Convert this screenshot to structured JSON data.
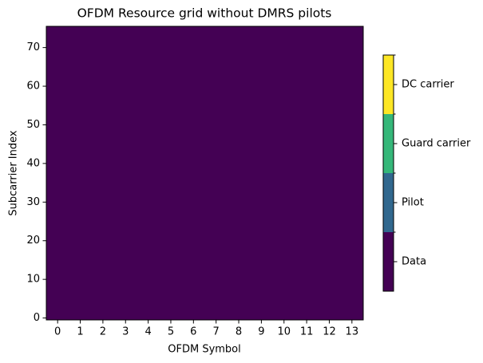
{
  "chart_data": {
    "type": "heatmap",
    "title": "OFDM Resource grid without DMRS pilots",
    "x_label": "OFDM Symbol",
    "y_label": "Subcarrier Index",
    "xlim": [
      -0.5,
      13.5
    ],
    "xticks": [
      0,
      1,
      2,
      3,
      4,
      5,
      6,
      7,
      8,
      9,
      10,
      11,
      12,
      13
    ],
    "ylim": [
      -0.5,
      75.5
    ],
    "yticks": [
      0,
      10,
      20,
      30,
      40,
      50,
      60,
      70
    ],
    "z": [
      [
        0,
        0,
        0,
        0,
        0,
        0,
        0,
        0,
        0,
        0,
        0,
        0,
        0,
        0
      ],
      [
        0,
        0,
        0,
        0,
        0,
        0,
        0,
        0,
        0,
        0,
        0,
        0,
        0,
        0
      ],
      [
        0,
        0,
        0,
        0,
        0,
        0,
        0,
        0,
        0,
        0,
        0,
        0,
        0,
        0
      ],
      [
        0,
        0,
        0,
        0,
        0,
        0,
        0,
        0,
        0,
        0,
        0,
        0,
        0,
        0
      ],
      [
        0,
        0,
        0,
        0,
        0,
        0,
        0,
        0,
        0,
        0,
        0,
        0,
        0,
        0
      ],
      [
        0,
        0,
        0,
        0,
        0,
        0,
        0,
        0,
        0,
        0,
        0,
        0,
        0,
        0
      ],
      [
        0,
        0,
        0,
        0,
        0,
        0,
        0,
        0,
        0,
        0,
        0,
        0,
        0,
        0
      ],
      [
        0,
        0,
        0,
        0,
        0,
        0,
        0,
        0,
        0,
        0,
        0,
        0,
        0,
        0
      ],
      [
        0,
        0,
        0,
        0,
        0,
        0,
        0,
        0,
        0,
        0,
        0,
        0,
        0,
        0
      ],
      [
        0,
        0,
        0,
        0,
        0,
        0,
        0,
        0,
        0,
        0,
        0,
        0,
        0,
        0
      ],
      [
        0,
        0,
        0,
        0,
        0,
        0,
        0,
        0,
        0,
        0,
        0,
        0,
        0,
        0
      ],
      [
        0,
        0,
        0,
        0,
        0,
        0,
        0,
        0,
        0,
        0,
        0,
        0,
        0,
        0
      ],
      [
        0,
        0,
        0,
        0,
        0,
        0,
        0,
        0,
        0,
        0,
        0,
        0,
        0,
        0
      ],
      [
        0,
        0,
        0,
        0,
        0,
        0,
        0,
        0,
        0,
        0,
        0,
        0,
        0,
        0
      ],
      [
        0,
        0,
        0,
        0,
        0,
        0,
        0,
        0,
        0,
        0,
        0,
        0,
        0,
        0
      ],
      [
        0,
        0,
        0,
        0,
        0,
        0,
        0,
        0,
        0,
        0,
        0,
        0,
        0,
        0
      ],
      [
        0,
        0,
        0,
        0,
        0,
        0,
        0,
        0,
        0,
        0,
        0,
        0,
        0,
        0
      ],
      [
        0,
        0,
        0,
        0,
        0,
        0,
        0,
        0,
        0,
        0,
        0,
        0,
        0,
        0
      ],
      [
        0,
        0,
        0,
        0,
        0,
        0,
        0,
        0,
        0,
        0,
        0,
        0,
        0,
        0
      ],
      [
        0,
        0,
        0,
        0,
        0,
        0,
        0,
        0,
        0,
        0,
        0,
        0,
        0,
        0
      ],
      [
        0,
        0,
        0,
        0,
        0,
        0,
        0,
        0,
        0,
        0,
        0,
        0,
        0,
        0
      ],
      [
        0,
        0,
        0,
        0,
        0,
        0,
        0,
        0,
        0,
        0,
        0,
        0,
        0,
        0
      ],
      [
        0,
        0,
        0,
        0,
        0,
        0,
        0,
        0,
        0,
        0,
        0,
        0,
        0,
        0
      ],
      [
        0,
        0,
        0,
        0,
        0,
        0,
        0,
        0,
        0,
        0,
        0,
        0,
        0,
        0
      ],
      [
        0,
        0,
        0,
        0,
        0,
        0,
        0,
        0,
        0,
        0,
        0,
        0,
        0,
        0
      ],
      [
        0,
        0,
        0,
        0,
        0,
        0,
        0,
        0,
        0,
        0,
        0,
        0,
        0,
        0
      ],
      [
        0,
        0,
        0,
        0,
        0,
        0,
        0,
        0,
        0,
        0,
        0,
        0,
        0,
        0
      ],
      [
        0,
        0,
        0,
        0,
        0,
        0,
        0,
        0,
        0,
        0,
        0,
        0,
        0,
        0
      ],
      [
        0,
        0,
        0,
        0,
        0,
        0,
        0,
        0,
        0,
        0,
        0,
        0,
        0,
        0
      ],
      [
        0,
        0,
        0,
        0,
        0,
        0,
        0,
        0,
        0,
        0,
        0,
        0,
        0,
        0
      ],
      [
        0,
        0,
        0,
        0,
        0,
        0,
        0,
        0,
        0,
        0,
        0,
        0,
        0,
        0
      ],
      [
        0,
        0,
        0,
        0,
        0,
        0,
        0,
        0,
        0,
        0,
        0,
        0,
        0,
        0
      ],
      [
        0,
        0,
        0,
        0,
        0,
        0,
        0,
        0,
        0,
        0,
        0,
        0,
        0,
        0
      ],
      [
        0,
        0,
        0,
        0,
        0,
        0,
        0,
        0,
        0,
        0,
        0,
        0,
        0,
        0
      ],
      [
        0,
        0,
        0,
        0,
        0,
        0,
        0,
        0,
        0,
        0,
        0,
        0,
        0,
        0
      ],
      [
        0,
        0,
        0,
        0,
        0,
        0,
        0,
        0,
        0,
        0,
        0,
        0,
        0,
        0
      ],
      [
        0,
        0,
        0,
        0,
        0,
        0,
        0,
        0,
        0,
        0,
        0,
        0,
        0,
        0
      ],
      [
        0,
        0,
        0,
        0,
        0,
        0,
        0,
        0,
        0,
        0,
        0,
        0,
        0,
        0
      ],
      [
        0,
        0,
        0,
        0,
        0,
        0,
        0,
        0,
        0,
        0,
        0,
        0,
        0,
        0
      ],
      [
        0,
        0,
        0,
        0,
        0,
        0,
        0,
        0,
        0,
        0,
        0,
        0,
        0,
        0
      ],
      [
        0,
        0,
        0,
        0,
        0,
        0,
        0,
        0,
        0,
        0,
        0,
        0,
        0,
        0
      ],
      [
        0,
        0,
        0,
        0,
        0,
        0,
        0,
        0,
        0,
        0,
        0,
        0,
        0,
        0
      ],
      [
        0,
        0,
        0,
        0,
        0,
        0,
        0,
        0,
        0,
        0,
        0,
        0,
        0,
        0
      ],
      [
        0,
        0,
        0,
        0,
        0,
        0,
        0,
        0,
        0,
        0,
        0,
        0,
        0,
        0
      ],
      [
        0,
        0,
        0,
        0,
        0,
        0,
        0,
        0,
        0,
        0,
        0,
        0,
        0,
        0
      ],
      [
        0,
        0,
        0,
        0,
        0,
        0,
        0,
        0,
        0,
        0,
        0,
        0,
        0,
        0
      ],
      [
        0,
        0,
        0,
        0,
        0,
        0,
        0,
        0,
        0,
        0,
        0,
        0,
        0,
        0
      ],
      [
        0,
        0,
        0,
        0,
        0,
        0,
        0,
        0,
        0,
        0,
        0,
        0,
        0,
        0
      ],
      [
        0,
        0,
        0,
        0,
        0,
        0,
        0,
        0,
        0,
        0,
        0,
        0,
        0,
        0
      ],
      [
        0,
        0,
        0,
        0,
        0,
        0,
        0,
        0,
        0,
        0,
        0,
        0,
        0,
        0
      ],
      [
        0,
        0,
        0,
        0,
        0,
        0,
        0,
        0,
        0,
        0,
        0,
        0,
        0,
        0
      ],
      [
        0,
        0,
        0,
        0,
        0,
        0,
        0,
        0,
        0,
        0,
        0,
        0,
        0,
        0
      ],
      [
        0,
        0,
        0,
        0,
        0,
        0,
        0,
        0,
        0,
        0,
        0,
        0,
        0,
        0
      ],
      [
        0,
        0,
        0,
        0,
        0,
        0,
        0,
        0,
        0,
        0,
        0,
        0,
        0,
        0
      ],
      [
        0,
        0,
        0,
        0,
        0,
        0,
        0,
        0,
        0,
        0,
        0,
        0,
        0,
        0
      ],
      [
        0,
        0,
        0,
        0,
        0,
        0,
        0,
        0,
        0,
        0,
        0,
        0,
        0,
        0
      ],
      [
        0,
        0,
        0,
        0,
        0,
        0,
        0,
        0,
        0,
        0,
        0,
        0,
        0,
        0
      ],
      [
        0,
        0,
        0,
        0,
        0,
        0,
        0,
        0,
        0,
        0,
        0,
        0,
        0,
        0
      ],
      [
        0,
        0,
        0,
        0,
        0,
        0,
        0,
        0,
        0,
        0,
        0,
        0,
        0,
        0
      ],
      [
        0,
        0,
        0,
        0,
        0,
        0,
        0,
        0,
        0,
        0,
        0,
        0,
        0,
        0
      ],
      [
        0,
        0,
        0,
        0,
        0,
        0,
        0,
        0,
        0,
        0,
        0,
        0,
        0,
        0
      ],
      [
        0,
        0,
        0,
        0,
        0,
        0,
        0,
        0,
        0,
        0,
        0,
        0,
        0,
        0
      ],
      [
        0,
        0,
        0,
        0,
        0,
        0,
        0,
        0,
        0,
        0,
        0,
        0,
        0,
        0
      ],
      [
        0,
        0,
        0,
        0,
        0,
        0,
        0,
        0,
        0,
        0,
        0,
        0,
        0,
        0
      ],
      [
        0,
        0,
        0,
        0,
        0,
        0,
        0,
        0,
        0,
        0,
        0,
        0,
        0,
        0
      ],
      [
        0,
        0,
        0,
        0,
        0,
        0,
        0,
        0,
        0,
        0,
        0,
        0,
        0,
        0
      ],
      [
        0,
        0,
        0,
        0,
        0,
        0,
        0,
        0,
        0,
        0,
        0,
        0,
        0,
        0
      ],
      [
        0,
        0,
        0,
        0,
        0,
        0,
        0,
        0,
        0,
        0,
        0,
        0,
        0,
        0
      ],
      [
        0,
        0,
        0,
        0,
        0,
        0,
        0,
        0,
        0,
        0,
        0,
        0,
        0,
        0
      ],
      [
        0,
        0,
        0,
        0,
        0,
        0,
        0,
        0,
        0,
        0,
        0,
        0,
        0,
        0
      ],
      [
        0,
        0,
        0,
        0,
        0,
        0,
        0,
        0,
        0,
        0,
        0,
        0,
        0,
        0
      ],
      [
        0,
        0,
        0,
        0,
        0,
        0,
        0,
        0,
        0,
        0,
        0,
        0,
        0,
        0
      ],
      [
        0,
        0,
        0,
        0,
        0,
        0,
        0,
        0,
        0,
        0,
        0,
        0,
        0,
        0
      ],
      [
        0,
        0,
        0,
        0,
        0,
        0,
        0,
        0,
        0,
        0,
        0,
        0,
        0,
        0
      ],
      [
        0,
        0,
        0,
        0,
        0,
        0,
        0,
        0,
        0,
        0,
        0,
        0,
        0,
        0
      ],
      [
        0,
        0,
        0,
        0,
        0,
        0,
        0,
        0,
        0,
        0,
        0,
        0,
        0,
        0
      ]
    ],
    "colorbar": {
      "categories": [
        "Data",
        "Pilot",
        "Guard carrier",
        "DC carrier"
      ],
      "colors": [
        "#440154",
        "#31688e",
        "#35b779",
        "#fde725"
      ],
      "lim": [
        -0.5,
        3.5
      ],
      "ticks": [
        0,
        1,
        2,
        3
      ]
    }
  }
}
